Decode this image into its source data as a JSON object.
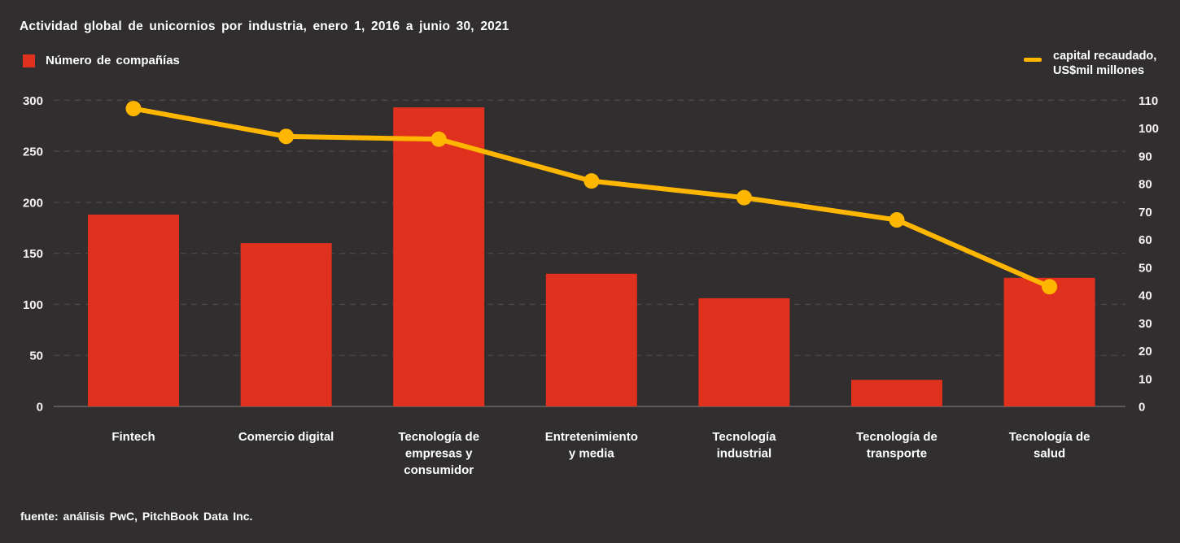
{
  "title": "Actividad global de unicornios por industria, enero 1, 2016 a junio 30, 2021",
  "legend": {
    "bars_label": "Número de compañías",
    "line_label_line1": "capital recaudado,",
    "line_label_line2": "US$mil millones"
  },
  "footer": "fuente: análisis PwC, PitchBook Data Inc.",
  "colors": {
    "background": "#302e2f",
    "bar": "#e0301e",
    "line": "#ffb600",
    "grid": "#4a4848",
    "axis_line": "#6a6767",
    "tick_text": "#f5f3f2",
    "category_text": "#ffffff"
  },
  "chart_data": {
    "type": "bar",
    "subtype": "combo bar+line, dual y-axis",
    "title": "Actividad global de unicornios por industria, enero 1, 2016 a junio 30, 2021",
    "categories": [
      "Fintech",
      "Comercio digital",
      "Tecnología de empresas y consumidor",
      "Entretenimiento y media",
      "Tecnología industrial",
      "Tecnología de transporte",
      "Tecnología de salud"
    ],
    "category_label_lines": [
      [
        "Fintech"
      ],
      [
        "Comercio digital"
      ],
      [
        "Tecnología de",
        "empresas y",
        "consumidor"
      ],
      [
        "Entretenimiento",
        "y media"
      ],
      [
        "Tecnología",
        "industrial"
      ],
      [
        "Tecnología de",
        "transporte"
      ],
      [
        "Tecnología de",
        "salud"
      ]
    ],
    "series": [
      {
        "name": "Número de compañías",
        "type": "bar",
        "axis": "left",
        "color": "#e0301e",
        "values": [
          188,
          160,
          293,
          130,
          106,
          26,
          126
        ]
      },
      {
        "name": "capital recaudado, US$mil millones",
        "type": "line",
        "axis": "right",
        "color": "#ffb600",
        "values": [
          107,
          97,
          96,
          81,
          75,
          67,
          43
        ]
      }
    ],
    "left_axis": {
      "label": "Número de compañías",
      "min": 0,
      "max": 300,
      "ticks": [
        0,
        50,
        100,
        150,
        200,
        250,
        300
      ]
    },
    "right_axis": {
      "label": "capital recaudado, US$mil millones",
      "min": 0,
      "max": 110,
      "ticks": [
        0,
        10,
        20,
        30,
        40,
        50,
        60,
        70,
        80,
        90,
        100,
        110
      ]
    },
    "grid": "horizontal dashed, baseline solid",
    "legend_position": "top (bar legend left, line legend right)"
  }
}
